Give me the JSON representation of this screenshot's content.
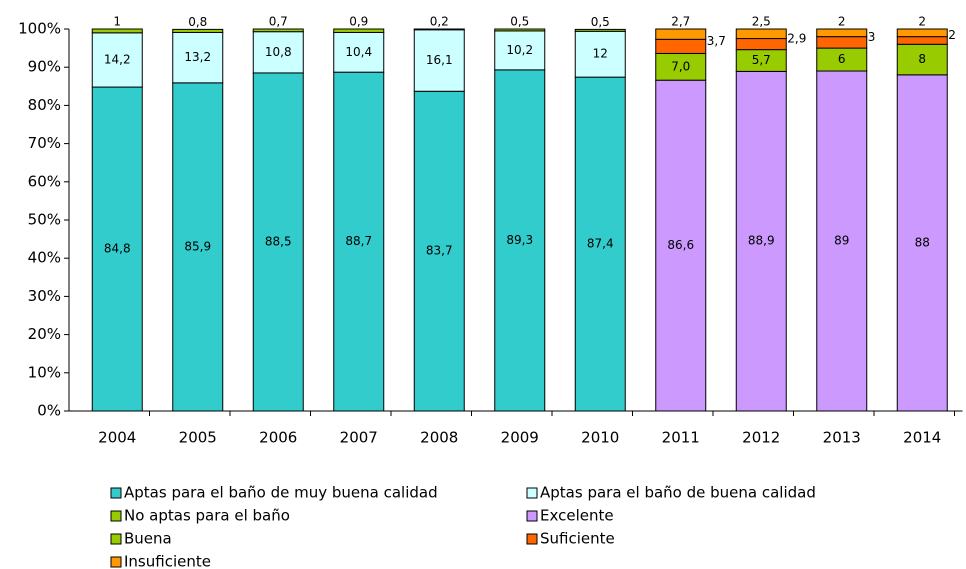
{
  "chart_data": {
    "type": "stacked_bar",
    "categories": [
      "2004",
      "2005",
      "2006",
      "2007",
      "2008",
      "2009",
      "2010",
      "2011",
      "2012",
      "2013",
      "2014"
    ],
    "series": [
      {
        "name": "Aptas para el baño de muy buena calidad",
        "color": "#33cccc",
        "values": [
          84.8,
          85.9,
          88.5,
          88.7,
          83.7,
          89.3,
          87.4,
          null,
          null,
          null,
          null
        ],
        "value_labels": [
          "84,8",
          "85,9",
          "88,5",
          "88,7",
          "83,7",
          "89,3",
          "87,4",
          null,
          null,
          null,
          null
        ]
      },
      {
        "name": "Aptas para el baño de  buena calidad",
        "color": "#ccffff",
        "values": [
          14.2,
          13.2,
          10.8,
          10.4,
          16.1,
          10.2,
          12,
          null,
          null,
          null,
          null
        ],
        "value_labels": [
          "14,2",
          "13,2",
          "10,8",
          "10,4",
          "16,1",
          "10,2",
          "12",
          null,
          null,
          null,
          null
        ]
      },
      {
        "name": "No aptas para el baño",
        "color": "#99cc00",
        "values": [
          1,
          0.8,
          0.7,
          0.9,
          0.2,
          0.5,
          0.5,
          null,
          null,
          null,
          null
        ],
        "value_labels": [
          "1",
          "0,8",
          "0,7",
          "0,9",
          "0,2",
          "0,5",
          "0,5",
          null,
          null,
          null,
          null
        ]
      },
      {
        "name": "Excelente",
        "color": "#cc99ff",
        "values": [
          null,
          null,
          null,
          null,
          null,
          null,
          null,
          86.6,
          88.9,
          89,
          88
        ],
        "value_labels": [
          null,
          null,
          null,
          null,
          null,
          null,
          null,
          "86,6",
          "88,9",
          "89",
          "88"
        ]
      },
      {
        "name": "Buena",
        "color": "#99cc00",
        "values": [
          null,
          null,
          null,
          null,
          null,
          null,
          null,
          7,
          5.7,
          6,
          8
        ],
        "value_labels": [
          null,
          null,
          null,
          null,
          null,
          null,
          null,
          "7,0",
          "5,7",
          "6",
          "8"
        ]
      },
      {
        "name": "Suficiente",
        "color": "#ff6600",
        "values": [
          null,
          null,
          null,
          null,
          null,
          null,
          null,
          3.7,
          2.9,
          3,
          2
        ],
        "value_labels": [
          null,
          null,
          null,
          null,
          null,
          null,
          null,
          "3,7",
          "2,9",
          "3",
          "2"
        ]
      },
      {
        "name": "Insuficiente",
        "color": "#ff9900",
        "values": [
          null,
          null,
          null,
          null,
          null,
          null,
          null,
          2.7,
          2.5,
          2,
          2
        ],
        "value_labels": [
          null,
          null,
          null,
          null,
          null,
          null,
          null,
          "2,7",
          "2,5",
          "2",
          "2"
        ]
      }
    ],
    "ylim": [
      0,
      100
    ],
    "yticks": [
      {
        "value": 0,
        "label": "0%"
      },
      {
        "value": 10,
        "label": "10%"
      },
      {
        "value": 20,
        "label": "20%"
      },
      {
        "value": 30,
        "label": "30%"
      },
      {
        "value": 40,
        "label": "40%"
      },
      {
        "value": 50,
        "label": "50%"
      },
      {
        "value": 60,
        "label": "60%"
      },
      {
        "value": 70,
        "label": "70%"
      },
      {
        "value": 80,
        "label": "80%"
      },
      {
        "value": 90,
        "label": "90%"
      },
      {
        "value": 100,
        "label": "100%"
      }
    ]
  }
}
